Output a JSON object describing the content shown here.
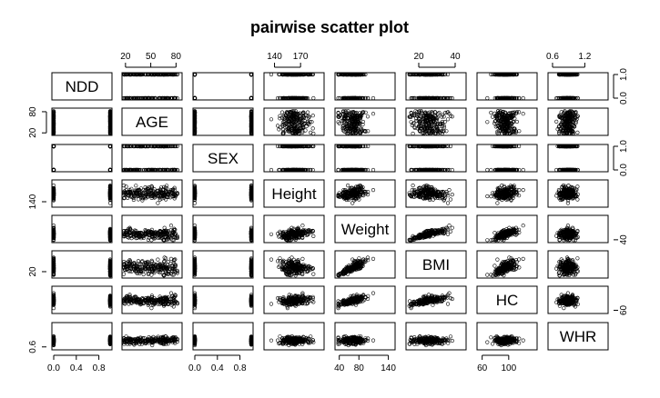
{
  "chart_data": {
    "type": "scatter",
    "title": "pairwise scatter plot",
    "variables": [
      "NDD",
      "AGE",
      "SEX",
      "Height",
      "Weight",
      "BMI",
      "HC",
      "WHR"
    ],
    "ranges": [
      [
        0,
        1
      ],
      [
        18,
        85
      ],
      [
        0,
        1
      ],
      [
        130,
        195
      ],
      [
        35,
        150
      ],
      [
        14,
        45
      ],
      [
        55,
        140
      ],
      [
        0.55,
        1.6
      ]
    ],
    "axes": [
      {
        "var": "NDD",
        "side": "bottom",
        "ticks": [
          0.0,
          0.4,
          0.8
        ],
        "labels": [
          "0.0",
          "0.4",
          "0.8"
        ]
      },
      {
        "var": "SEX",
        "side": "bottom",
        "ticks": [
          0.0,
          0.4,
          0.8
        ],
        "labels": [
          "0.0",
          "0.4",
          "0.8"
        ]
      },
      {
        "var": "Weight",
        "side": "bottom",
        "ticks": [
          40,
          80,
          140
        ],
        "labels": [
          "40",
          "80",
          "140"
        ]
      },
      {
        "var": "HC",
        "side": "bottom",
        "ticks": [
          60,
          100
        ],
        "labels": [
          "60",
          "100"
        ]
      },
      {
        "var": "AGE",
        "side": "top",
        "ticks": [
          20,
          50,
          80
        ],
        "labels": [
          "20",
          "50",
          "80"
        ]
      },
      {
        "var": "Height",
        "side": "top",
        "ticks": [
          140,
          170
        ],
        "labels": [
          "140",
          "170"
        ]
      },
      {
        "var": "BMI",
        "side": "top",
        "ticks": [
          20,
          40
        ],
        "labels": [
          "20",
          "40"
        ]
      },
      {
        "var": "WHR",
        "side": "top",
        "ticks": [
          0.6,
          1.2
        ],
        "labels": [
          "0.6",
          "1.2"
        ]
      },
      {
        "var": "AGE",
        "side": "left",
        "ticks": [
          20,
          80
        ],
        "labels": [
          "20",
          "80"
        ]
      },
      {
        "var": "Height",
        "side": "left",
        "ticks": [
          140
        ],
        "labels": [
          "140"
        ]
      },
      {
        "var": "BMI",
        "side": "left",
        "ticks": [
          20
        ],
        "labels": [
          "20"
        ]
      },
      {
        "var": "WHR",
        "side": "left",
        "ticks": [
          0.6
        ],
        "labels": [
          "0.6"
        ]
      },
      {
        "var": "NDD",
        "side": "right",
        "ticks": [
          0.0,
          1.0
        ],
        "labels": [
          "0.0",
          "1.0"
        ]
      },
      {
        "var": "SEX",
        "side": "right",
        "ticks": [
          0.0,
          1.0
        ],
        "labels": [
          "0.0",
          "1.0"
        ]
      },
      {
        "var": "Weight",
        "side": "right",
        "ticks": [
          40
        ],
        "labels": [
          "40"
        ]
      },
      {
        "var": "HC",
        "side": "right",
        "ticks": [
          60
        ],
        "labels": [
          "60"
        ]
      }
    ],
    "distributions": {
      "NDD": {
        "kind": "binary"
      },
      "SEX": {
        "kind": "binary"
      },
      "AGE": {
        "kind": "uniform",
        "min": 18,
        "max": 82
      },
      "Height": {
        "kind": "normal",
        "mean": 163,
        "sd": 8
      },
      "Weight": {
        "kind": "normal",
        "mean": 68,
        "sd": 14
      },
      "BMI": {
        "kind": "derived"
      },
      "HC": {
        "kind": "normal",
        "mean": 95,
        "sd": 9
      },
      "WHR": {
        "kind": "normal",
        "mean": 0.88,
        "sd": 0.08
      }
    },
    "marker": "open-circle",
    "grid": false,
    "legend": "none"
  }
}
